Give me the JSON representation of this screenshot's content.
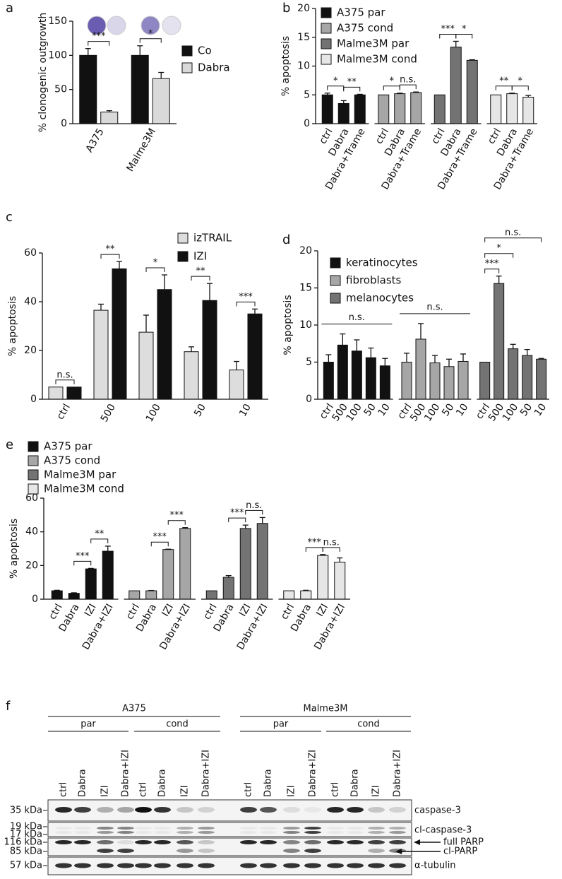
{
  "chart_data": [
    {
      "type": "bar",
      "panel": "a",
      "ylabel": "% clonogenic outgrowth",
      "categories": [
        "A375",
        "Malme3M"
      ],
      "series": [
        {
          "name": "Co",
          "color": "#111111",
          "values": [
            100,
            100
          ],
          "errors": [
            10,
            14
          ]
        },
        {
          "name": "Dabra",
          "color": "#d9d9d9",
          "values": [
            17,
            66
          ],
          "errors": [
            2,
            9
          ]
        }
      ],
      "annotations": [
        "***",
        "*"
      ],
      "ylim": [
        0,
        150
      ],
      "yticks": [
        0,
        50,
        100,
        150
      ]
    },
    {
      "type": "bar",
      "panel": "b",
      "ylabel": "% apoptosis",
      "categories": [
        "ctrl",
        "Dabra",
        "Dabra+Trame"
      ],
      "series": [
        {
          "name": "A375 par",
          "color": "#111111",
          "values": [
            5,
            3.5,
            5
          ],
          "errors": [
            0.3,
            0.5,
            0.1
          ],
          "annotations": [
            "*",
            "**"
          ]
        },
        {
          "name": "A375 cond",
          "color": "#a6a6a6",
          "values": [
            5,
            5.2,
            5.4
          ],
          "errors": [
            null,
            0.1,
            0.1
          ],
          "annotations": [
            "*",
            "n.s."
          ]
        },
        {
          "name": "Malme3M par",
          "color": "#737373",
          "values": [
            5,
            13.3,
            11
          ],
          "errors": [
            null,
            1,
            0.1
          ],
          "annotations": [
            "***",
            "*"
          ]
        },
        {
          "name": "Malme3M cond",
          "color": "#e6e6e6",
          "values": [
            5,
            5.2,
            4.6
          ],
          "errors": [
            null,
            0.1,
            0.3
          ],
          "annotations": [
            "**",
            "*"
          ]
        }
      ],
      "ylim": [
        0,
        20
      ],
      "yticks": [
        0,
        5,
        10,
        15,
        20
      ]
    },
    {
      "type": "bar",
      "panel": "c",
      "ylabel": "% apoptosis",
      "categories": [
        "ctrl",
        "500",
        "100",
        "50",
        "10"
      ],
      "series": [
        {
          "name": "izTRAIL",
          "color": "#dddddd",
          "values": [
            5,
            36.5,
            27.5,
            19.5,
            12
          ],
          "errors": [
            null,
            2.5,
            7,
            2,
            3.5
          ]
        },
        {
          "name": "IZI",
          "color": "#111111",
          "values": [
            5,
            53.5,
            45,
            40.5,
            35
          ],
          "errors": [
            null,
            3,
            6,
            7,
            2
          ]
        }
      ],
      "annotations": [
        "n.s.",
        "**",
        "*",
        "**",
        "***"
      ],
      "ylim": [
        0,
        60
      ],
      "yticks": [
        0,
        20,
        40,
        60
      ]
    },
    {
      "type": "bar",
      "panel": "d",
      "ylabel": "% apoptosis",
      "categories": [
        "ctrl",
        "500",
        "100",
        "50",
        "10"
      ],
      "series": [
        {
          "name": "keratinocytes",
          "color": "#111111",
          "values": [
            5,
            7.3,
            6.5,
            5.6,
            4.5
          ],
          "errors": [
            1,
            1.5,
            1.5,
            1.3,
            1
          ],
          "annotations": [
            "n.s."
          ]
        },
        {
          "name": "fibroblasts",
          "color": "#a6a6a6",
          "values": [
            5,
            8.1,
            4.9,
            4.4,
            5.1
          ],
          "errors": [
            1.2,
            2.1,
            1,
            1,
            1
          ],
          "annotations": [
            "n.s."
          ]
        },
        {
          "name": "melanocytes",
          "color": "#737373",
          "values": [
            5,
            15.6,
            6.8,
            5.9,
            5.4
          ],
          "errors": [
            null,
            1,
            0.6,
            0.8,
            0.1
          ],
          "annotations": [
            "***",
            "*",
            "n.s."
          ]
        }
      ],
      "ylim": [
        0,
        20
      ],
      "yticks": [
        0,
        5,
        10,
        15,
        20
      ]
    },
    {
      "type": "bar",
      "panel": "e",
      "ylabel": "% apoptosis",
      "categories": [
        "ctrl",
        "Dabra",
        "IZI",
        "Dabra+IZI"
      ],
      "series": [
        {
          "name": "A375 par",
          "color": "#111111",
          "values": [
            5,
            3.5,
            18,
            28.5
          ],
          "errors": [
            0.3,
            0.3,
            0.3,
            3
          ],
          "annotations": [
            "***",
            "**"
          ]
        },
        {
          "name": "A375 cond",
          "color": "#a6a6a6",
          "values": [
            5,
            5,
            29.5,
            42
          ],
          "errors": [
            null,
            0.2,
            0.2,
            0.5
          ],
          "annotations": [
            "***",
            "***"
          ]
        },
        {
          "name": "Malme3M par",
          "color": "#737373",
          "values": [
            5,
            13,
            42,
            45
          ],
          "errors": [
            null,
            1,
            2,
            3.5
          ],
          "annotations": [
            "***",
            "n.s."
          ]
        },
        {
          "name": "Malme3M cond",
          "color": "#e6e6e6",
          "values": [
            5,
            5,
            26,
            22
          ],
          "errors": [
            null,
            0.3,
            0.5,
            2.5
          ],
          "annotations": [
            "***",
            "n.s."
          ]
        }
      ],
      "ylim": [
        0,
        60
      ],
      "yticks": [
        0,
        20,
        40,
        60
      ]
    }
  ],
  "blot": {
    "panel": "f",
    "cell_lines": [
      "A375",
      "Malme3M"
    ],
    "conditions": [
      "par",
      "cond"
    ],
    "lanes": [
      "ctrl",
      "Dabra",
      "IZI",
      "Dabra+IZI"
    ],
    "markers": [
      "35 kDa",
      "19 kDa",
      "17 kDa",
      "116 kDa",
      "85 kDa",
      "57 kDa"
    ],
    "proteins": [
      "caspase-3",
      "cl-caspase-3",
      "full PARP",
      "cl-PARP",
      "α-tubulin"
    ]
  }
}
